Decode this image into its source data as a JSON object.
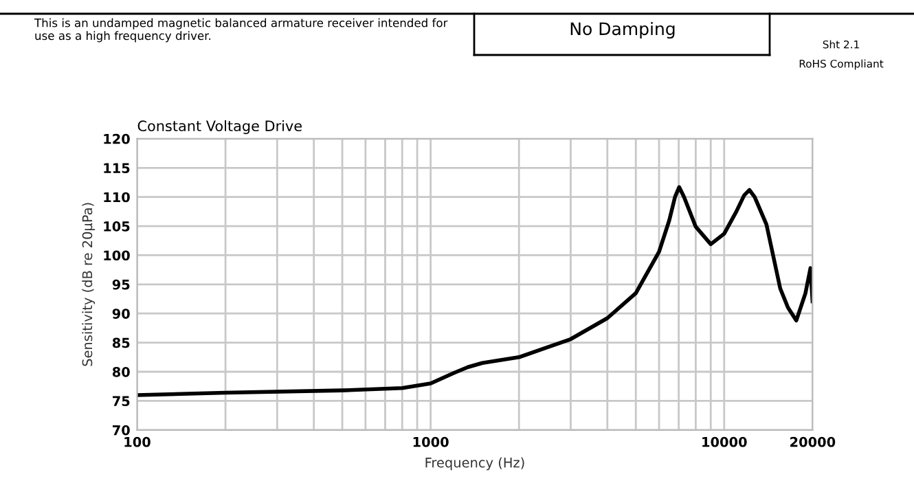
{
  "chart_data": {
    "type": "line",
    "title": "Constant Voltage Drive",
    "xlabel": "Frequency (Hz)",
    "ylabel": "Sensitivity (dB re 20µPa)",
    "annotations": [
      "This is an undamped magnetic balanced armature receiver intended for use as a high frequency driver.",
      "No Damping",
      "Sht 2.1",
      "RoHS Compliant"
    ],
    "log": "x",
    "grid": true,
    "marker": "none",
    "line_style": "solid",
    "xlim": [
      100,
      20000
    ],
    "ylim": [
      70,
      120
    ],
    "xticks": [
      100,
      {
        "value": 200,
        "label": null
      },
      {
        "value": 300,
        "label": null
      },
      {
        "value": 400,
        "label": null
      },
      {
        "value": 500,
        "label": null
      },
      {
        "value": 600,
        "label": null
      },
      {
        "value": 700,
        "label": null
      },
      {
        "value": 800,
        "label": null
      },
      {
        "value": 900,
        "label": null
      },
      1000,
      {
        "value": 2000,
        "label": null
      },
      {
        "value": 3000,
        "label": null
      },
      {
        "value": 4000,
        "label": null
      },
      {
        "value": 5000,
        "label": null
      },
      {
        "value": 6000,
        "label": null
      },
      {
        "value": 7000,
        "label": null
      },
      {
        "value": 8000,
        "label": null
      },
      {
        "value": 9000,
        "label": null
      },
      10000,
      20000
    ],
    "yticks": [
      70,
      75,
      80,
      85,
      90,
      95,
      100,
      105,
      110,
      115,
      120
    ],
    "series": [
      {
        "color": "#000000",
        "x": [
          100,
          200,
          500,
          800,
          1000,
          1200,
          1340,
          1500,
          2000,
          3000,
          4000,
          5000,
          6000,
          6500,
          6800,
          7025,
          7300,
          8000,
          9000,
          10000,
          11000,
          11700,
          12190,
          12700,
          13930,
          15520,
          16500,
          17610,
          18920,
          19680,
          20000
        ],
        "values": [
          76.0,
          76.4,
          76.8,
          77.2,
          78.0,
          79.8,
          80.8,
          81.5,
          82.5,
          85.6,
          89.2,
          93.5,
          100.6,
          106.0,
          110.0,
          111.7,
          110.0,
          104.9,
          101.9,
          103.7,
          107.5,
          110.3,
          111.2,
          110.0,
          105.3,
          94.3,
          91.0,
          88.8,
          93.5,
          97.8,
          92.1
        ]
      }
    ]
  }
}
